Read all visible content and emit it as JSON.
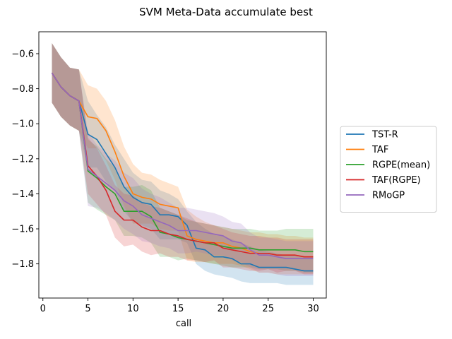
{
  "chart_data": {
    "type": "line",
    "title": "SVM Meta-Data accumulate best",
    "xlabel": "call",
    "ylabel": "",
    "xlim": [
      -0.45,
      31.45
    ],
    "ylim": [
      -1.995,
      -0.475
    ],
    "xticks": [
      0,
      5,
      10,
      15,
      20,
      25,
      30
    ],
    "yticks": [
      -1.8,
      -1.6,
      -1.4,
      -1.2,
      -1.0,
      -0.8,
      -0.6
    ],
    "ytick_labels": [
      "−1.8",
      "−1.6",
      "−1.4",
      "−1.2",
      "−1.0",
      "−0.8",
      "−0.6"
    ],
    "legend_position": "right-outside",
    "grid": false,
    "x": [
      1,
      2,
      3,
      4,
      5,
      6,
      7,
      8,
      9,
      10,
      11,
      12,
      13,
      14,
      15,
      16,
      17,
      18,
      19,
      20,
      21,
      22,
      23,
      24,
      25,
      26,
      27,
      28,
      29,
      30
    ],
    "series": [
      {
        "name": "TST-R",
        "color": "#1f77b4",
        "values": [
          -0.71,
          -0.79,
          -0.84,
          -0.87,
          -1.06,
          -1.09,
          -1.17,
          -1.25,
          -1.36,
          -1.42,
          -1.45,
          -1.46,
          -1.52,
          -1.52,
          -1.53,
          -1.58,
          -1.71,
          -1.72,
          -1.76,
          -1.76,
          -1.77,
          -1.8,
          -1.8,
          -1.82,
          -1.82,
          -1.82,
          -1.82,
          -1.83,
          -1.84,
          -1.84
        ],
        "upper": [
          -0.54,
          -0.62,
          -0.68,
          -0.69,
          -0.87,
          -0.95,
          -1.02,
          -1.12,
          -1.2,
          -1.28,
          -1.32,
          -1.33,
          -1.38,
          -1.4,
          -1.43,
          -1.5,
          -1.56,
          -1.6,
          -1.63,
          -1.64,
          -1.66,
          -1.68,
          -1.7,
          -1.72,
          -1.73,
          -1.74,
          -1.75,
          -1.75,
          -1.76,
          -1.76
        ],
        "lower": [
          -0.88,
          -0.96,
          -1.01,
          -1.04,
          -1.25,
          -1.25,
          -1.33,
          -1.38,
          -1.5,
          -1.56,
          -1.58,
          -1.6,
          -1.66,
          -1.66,
          -1.66,
          -1.68,
          -1.8,
          -1.84,
          -1.86,
          -1.87,
          -1.88,
          -1.9,
          -1.91,
          -1.91,
          -1.91,
          -1.91,
          -1.92,
          -1.92,
          -1.92,
          -1.92
        ]
      },
      {
        "name": "TAF",
        "color": "#ff7f0e",
        "values": [
          -0.71,
          -0.79,
          -0.84,
          -0.87,
          -0.96,
          -0.97,
          -1.04,
          -1.16,
          -1.3,
          -1.4,
          -1.42,
          -1.43,
          -1.46,
          -1.47,
          -1.48,
          -1.64,
          -1.66,
          -1.67,
          -1.68,
          -1.68,
          -1.7,
          -1.71,
          -1.73,
          -1.74,
          -1.74,
          -1.75,
          -1.75,
          -1.75,
          -1.76,
          -1.76
        ],
        "upper": [
          -0.54,
          -0.62,
          -0.68,
          -0.69,
          -0.78,
          -0.8,
          -0.87,
          -0.98,
          -1.13,
          -1.23,
          -1.28,
          -1.29,
          -1.32,
          -1.34,
          -1.36,
          -1.49,
          -1.53,
          -1.56,
          -1.58,
          -1.59,
          -1.6,
          -1.61,
          -1.62,
          -1.62,
          -1.63,
          -1.63,
          -1.64,
          -1.64,
          -1.65,
          -1.65
        ],
        "lower": [
          -0.88,
          -0.96,
          -1.01,
          -1.04,
          -1.14,
          -1.14,
          -1.21,
          -1.32,
          -1.47,
          -1.57,
          -1.57,
          -1.57,
          -1.6,
          -1.61,
          -1.61,
          -1.78,
          -1.79,
          -1.79,
          -1.8,
          -1.8,
          -1.8,
          -1.81,
          -1.83,
          -1.85,
          -1.85,
          -1.86,
          -1.86,
          -1.86,
          -1.86,
          -1.86
        ]
      },
      {
        "name": "RGPE(mean)",
        "color": "#2ca02c",
        "values": [
          -0.71,
          -0.79,
          -0.84,
          -0.87,
          -1.27,
          -1.31,
          -1.36,
          -1.4,
          -1.5,
          -1.5,
          -1.5,
          -1.53,
          -1.62,
          -1.63,
          -1.65,
          -1.66,
          -1.67,
          -1.68,
          -1.69,
          -1.7,
          -1.71,
          -1.71,
          -1.71,
          -1.72,
          -1.72,
          -1.72,
          -1.72,
          -1.72,
          -1.73,
          -1.73
        ],
        "upper": [
          -0.54,
          -0.62,
          -0.68,
          -0.69,
          -1.09,
          -1.13,
          -1.2,
          -1.25,
          -1.36,
          -1.36,
          -1.35,
          -1.38,
          -1.48,
          -1.5,
          -1.52,
          -1.55,
          -1.56,
          -1.57,
          -1.58,
          -1.59,
          -1.6,
          -1.6,
          -1.6,
          -1.61,
          -1.61,
          -1.61,
          -1.6,
          -1.6,
          -1.6,
          -1.6
        ],
        "lower": [
          -0.88,
          -0.96,
          -1.01,
          -1.04,
          -1.45,
          -1.49,
          -1.52,
          -1.55,
          -1.64,
          -1.64,
          -1.65,
          -1.68,
          -1.76,
          -1.76,
          -1.78,
          -1.77,
          -1.78,
          -1.79,
          -1.8,
          -1.81,
          -1.82,
          -1.82,
          -1.82,
          -1.83,
          -1.83,
          -1.83,
          -1.84,
          -1.84,
          -1.85,
          -1.85
        ]
      },
      {
        "name": "TAF(RGPE)",
        "color": "#d62728",
        "values": [
          -0.71,
          -0.79,
          -0.84,
          -0.87,
          -1.24,
          -1.3,
          -1.38,
          -1.5,
          -1.55,
          -1.55,
          -1.59,
          -1.61,
          -1.61,
          -1.63,
          -1.64,
          -1.66,
          -1.67,
          -1.68,
          -1.68,
          -1.71,
          -1.72,
          -1.73,
          -1.74,
          -1.74,
          -1.74,
          -1.75,
          -1.75,
          -1.75,
          -1.76,
          -1.76
        ],
        "upper": [
          -0.54,
          -0.62,
          -0.68,
          -0.69,
          -1.08,
          -1.14,
          -1.24,
          -1.35,
          -1.4,
          -1.41,
          -1.45,
          -1.47,
          -1.48,
          -1.5,
          -1.52,
          -1.54,
          -1.56,
          -1.57,
          -1.58,
          -1.6,
          -1.62,
          -1.63,
          -1.64,
          -1.64,
          -1.65,
          -1.65,
          -1.66,
          -1.66,
          -1.66,
          -1.66
        ],
        "lower": [
          -0.88,
          -0.96,
          -1.01,
          -1.04,
          -1.4,
          -1.46,
          -1.52,
          -1.65,
          -1.7,
          -1.69,
          -1.73,
          -1.75,
          -1.74,
          -1.76,
          -1.76,
          -1.78,
          -1.78,
          -1.79,
          -1.78,
          -1.82,
          -1.82,
          -1.83,
          -1.84,
          -1.84,
          -1.83,
          -1.85,
          -1.84,
          -1.84,
          -1.86,
          -1.86
        ]
      },
      {
        "name": "RMoGP",
        "color": "#9467bd",
        "values": [
          -0.71,
          -0.79,
          -0.84,
          -0.87,
          -1.26,
          -1.3,
          -1.34,
          -1.38,
          -1.44,
          -1.47,
          -1.52,
          -1.54,
          -1.56,
          -1.58,
          -1.61,
          -1.61,
          -1.61,
          -1.62,
          -1.63,
          -1.64,
          -1.67,
          -1.68,
          -1.72,
          -1.75,
          -1.75,
          -1.76,
          -1.77,
          -1.77,
          -1.77,
          -1.77
        ],
        "upper": [
          -0.54,
          -0.62,
          -0.68,
          -0.69,
          -1.05,
          -1.12,
          -1.17,
          -1.21,
          -1.28,
          -1.31,
          -1.37,
          -1.4,
          -1.42,
          -1.45,
          -1.48,
          -1.48,
          -1.49,
          -1.5,
          -1.51,
          -1.53,
          -1.56,
          -1.57,
          -1.62,
          -1.65,
          -1.65,
          -1.66,
          -1.67,
          -1.67,
          -1.67,
          -1.67
        ],
        "lower": [
          -0.88,
          -0.96,
          -1.01,
          -1.04,
          -1.47,
          -1.48,
          -1.51,
          -1.55,
          -1.6,
          -1.63,
          -1.67,
          -1.68,
          -1.7,
          -1.71,
          -1.74,
          -1.74,
          -1.73,
          -1.74,
          -1.75,
          -1.75,
          -1.78,
          -1.79,
          -1.82,
          -1.85,
          -1.85,
          -1.86,
          -1.87,
          -1.87,
          -1.87,
          -1.87
        ]
      }
    ]
  }
}
